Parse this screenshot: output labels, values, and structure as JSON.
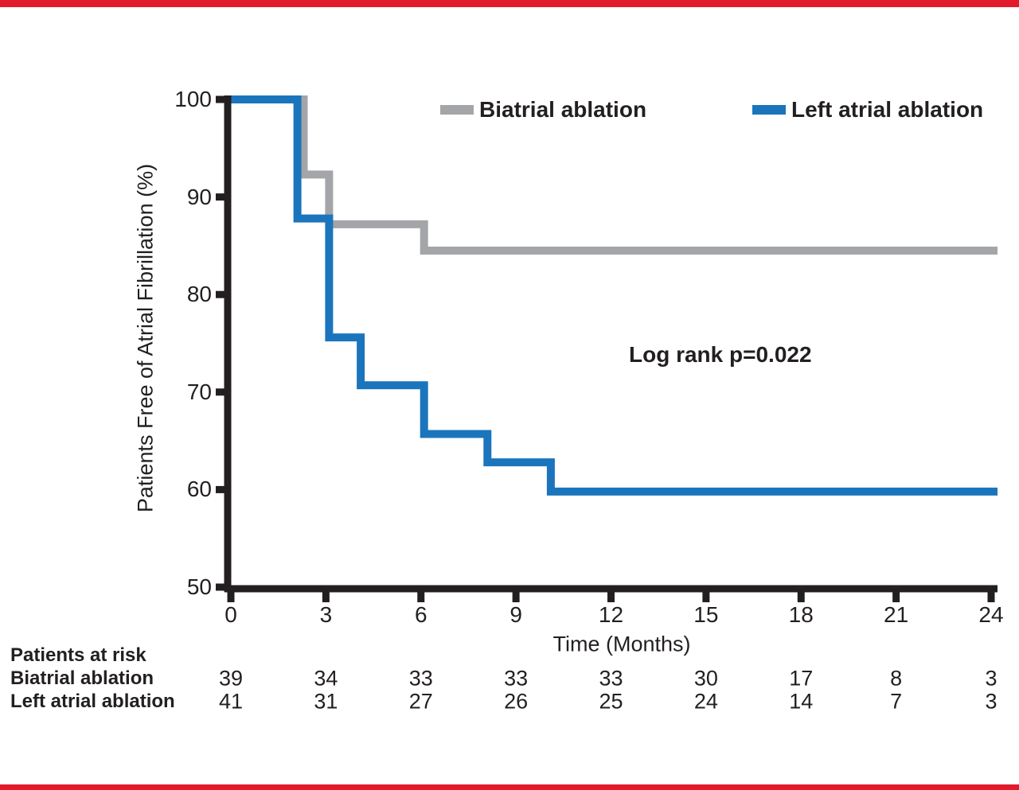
{
  "page": {
    "background": "#ffffff",
    "border_color": "#e11b2c"
  },
  "chart_data": {
    "type": "line",
    "subtype": "kaplan-meier-step",
    "title": "",
    "xlabel": "Time (Months)",
    "ylabel": "Patients Free of Atrial Fibrillation (%)",
    "xlim": [
      0,
      24.2
    ],
    "ylim": [
      50,
      100
    ],
    "x_ticks": [
      0,
      3,
      6,
      9,
      12,
      15,
      18,
      21,
      24
    ],
    "y_ticks": [
      50,
      60,
      70,
      80,
      90,
      100
    ],
    "grid": false,
    "legend_position": "top",
    "axis_color": "#231f20",
    "annotation": "Log rank p=0.022",
    "series": [
      {
        "name": "Biatrial ablation",
        "color": "#a3a5a8",
        "steps": [
          [
            0,
            100
          ],
          [
            2.3,
            100
          ],
          [
            2.3,
            92.3
          ],
          [
            3.1,
            92.3
          ],
          [
            3.1,
            87.2
          ],
          [
            6.1,
            87.2
          ],
          [
            6.1,
            84.5
          ],
          [
            24.2,
            84.5
          ]
        ]
      },
      {
        "name": "Left atrial ablation",
        "color": "#1b75bc",
        "steps": [
          [
            0,
            100
          ],
          [
            2.1,
            100
          ],
          [
            2.1,
            87.8
          ],
          [
            3.1,
            87.8
          ],
          [
            3.1,
            75.6
          ],
          [
            4.1,
            75.6
          ],
          [
            4.1,
            70.7
          ],
          [
            6.1,
            70.7
          ],
          [
            6.1,
            65.7
          ],
          [
            8.1,
            65.7
          ],
          [
            8.1,
            62.8
          ],
          [
            10.1,
            62.8
          ],
          [
            10.1,
            59.8
          ],
          [
            24.2,
            59.8
          ]
        ]
      }
    ],
    "legend": [
      {
        "label": "Biatrial ablation",
        "color": "#a3a5a8"
      },
      {
        "label": "Left atrial ablation",
        "color": "#1b75bc"
      }
    ],
    "risk_table": {
      "title": "Patients at risk",
      "time_points": [
        0,
        3,
        6,
        9,
        12,
        15,
        18,
        21,
        24
      ],
      "rows": [
        {
          "label": "Biatrial ablation",
          "values": [
            39,
            34,
            33,
            33,
            33,
            30,
            17,
            8,
            3
          ]
        },
        {
          "label": "Left atrial ablation",
          "values": [
            41,
            31,
            27,
            26,
            25,
            24,
            14,
            7,
            3
          ]
        }
      ]
    }
  }
}
